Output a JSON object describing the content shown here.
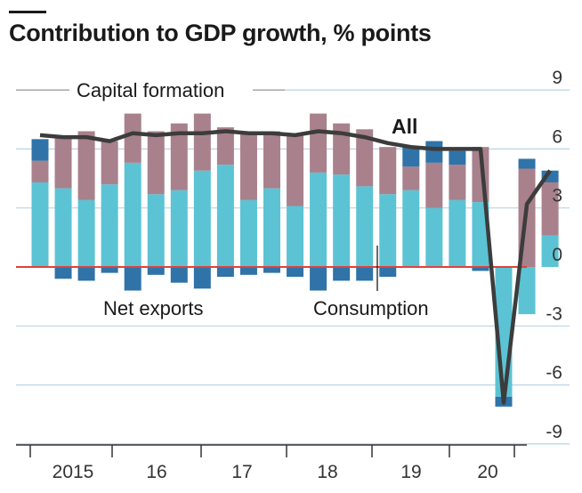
{
  "chart_data": {
    "type": "bar",
    "stacked": true,
    "title": "Contribution to GDP growth, % points",
    "categories": [
      "2015 Q1",
      "2015 Q2",
      "2015 Q3",
      "2015 Q4",
      "2016 Q1",
      "2016 Q2",
      "2016 Q3",
      "2016 Q4",
      "2017 Q1",
      "2017 Q2",
      "2017 Q3",
      "2017 Q4",
      "2018 Q1",
      "2018 Q2",
      "2018 Q3",
      "2018 Q4",
      "2019 Q1",
      "2019 Q2",
      "2019 Q3",
      "2019 Q4",
      "2020 Q1",
      "2020 Q2",
      "2020 Q3"
    ],
    "series": [
      {
        "name": "Consumption",
        "color": "#5bc3d4",
        "values": [
          4.3,
          4.0,
          3.4,
          4.2,
          5.3,
          3.7,
          3.9,
          4.9,
          5.2,
          3.4,
          4.0,
          3.1,
          4.8,
          4.7,
          4.1,
          3.7,
          3.9,
          3.0,
          3.4,
          3.3,
          -6.6,
          -2.4,
          1.6
        ]
      },
      {
        "name": "Capital formation",
        "color": "#a8818d",
        "values": [
          1.1,
          2.6,
          3.5,
          2.2,
          2.5,
          3.2,
          3.4,
          2.9,
          1.9,
          3.5,
          2.9,
          3.6,
          3.0,
          2.6,
          2.9,
          2.4,
          1.2,
          2.3,
          1.8,
          2.8,
          0.0,
          5.0,
          2.7
        ]
      },
      {
        "name": "Net exports",
        "color": "#2f73a8",
        "values": [
          1.1,
          -0.6,
          -0.7,
          -0.3,
          -1.2,
          -0.4,
          -0.8,
          -1.1,
          -0.5,
          -0.4,
          -0.3,
          -0.5,
          -1.2,
          -0.7,
          -0.7,
          -0.5,
          1.0,
          1.1,
          0.7,
          -0.2,
          -0.5,
          0.5,
          0.6
        ]
      }
    ],
    "line": {
      "name": "All",
      "values": [
        6.7,
        6.6,
        6.6,
        6.4,
        6.8,
        6.7,
        6.8,
        6.8,
        6.9,
        6.8,
        6.8,
        6.7,
        6.9,
        6.8,
        6.6,
        6.3,
        6.1,
        6.0,
        6.0,
        6.0,
        -6.9,
        3.2,
        4.9
      ]
    },
    "x_ticks": [
      "2015",
      "16",
      "17",
      "18",
      "19",
      "20"
    ],
    "y_ticks": [
      "9",
      "6",
      "3",
      "0",
      "-3",
      "-6",
      "-9"
    ],
    "ylim": [
      -9,
      9
    ],
    "annotations": {
      "capital_formation": "Capital formation",
      "net_exports": "Net exports",
      "consumption": "Consumption",
      "all": "All"
    },
    "colors": {
      "zero_line": "#e0413c",
      "grid": "#b9d4e4",
      "line": "#3c3c3c",
      "axis": "#333333"
    },
    "grid": true
  }
}
